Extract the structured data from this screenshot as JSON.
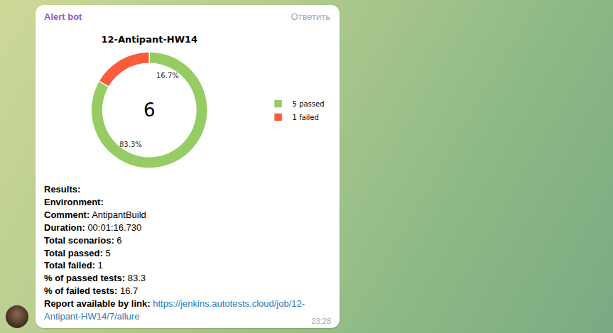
{
  "chart_data": {
    "type": "pie",
    "title": "12-Antipant-HW14",
    "categories": [
      "5 passed",
      "1 failed"
    ],
    "values": [
      83.3,
      16.7
    ],
    "value_labels": [
      "83.3%",
      "16.7%"
    ],
    "colors": [
      "#97cc64",
      "#fd5a3e"
    ],
    "total": 6,
    "data_labels": true,
    "legend": "right"
  },
  "message": {
    "sender": "Alert bot",
    "reply": "Ответить",
    "time": "23:28",
    "lines": [
      {
        "label": "Results:"
      },
      {
        "label": "Environment:"
      },
      {
        "label": "Comment:",
        "value": "AntipantBuild"
      },
      {
        "label": "Duration:",
        "value": "00:01:16.730"
      },
      {
        "label": "Total scenarios:",
        "value": "6"
      },
      {
        "label": "Total passed:",
        "value": "5"
      },
      {
        "label": "Total failed:",
        "value": "1"
      },
      {
        "label": "% of passed tests:",
        "value": "83.3"
      },
      {
        "label": "% of failed tests:",
        "value": "16.7"
      },
      {
        "label": "Report available by link:",
        "link": "https://jenkins.autotests.cloud/job/12-Antipant-HW14/7/allure"
      }
    ]
  }
}
